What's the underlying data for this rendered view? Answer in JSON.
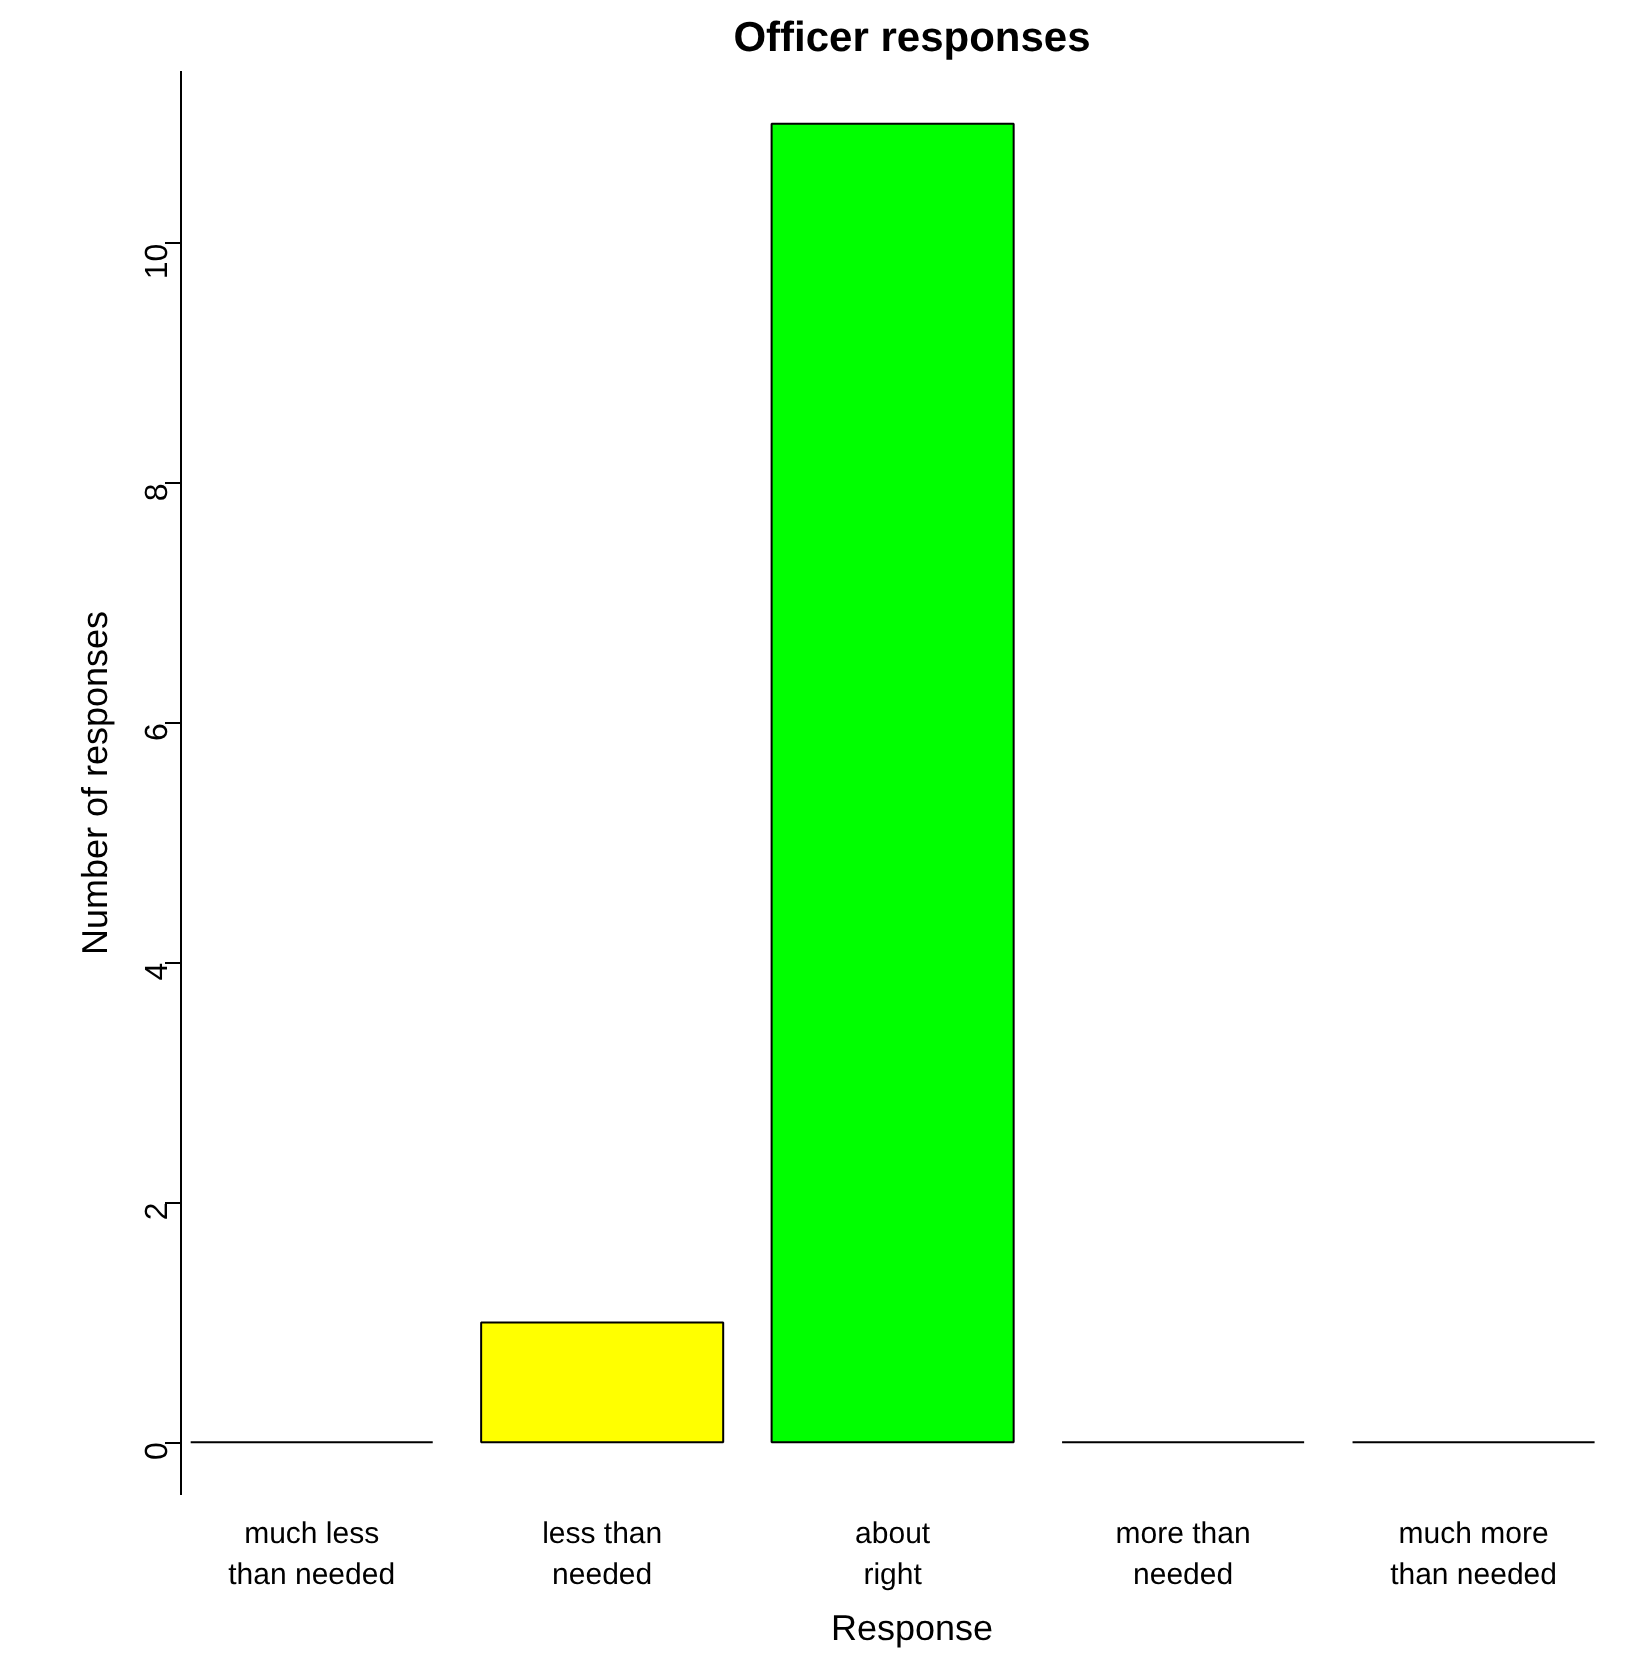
{
  "chart_data": {
    "type": "bar",
    "title": "Officer responses",
    "xlabel": "Response",
    "ylabel": "Number of responses",
    "categories": [
      "much less\nthan needed",
      "less than\nneeded",
      "about\nright",
      "more than\nneeded",
      "much more\nthan needed"
    ],
    "values": [
      0,
      1,
      11,
      0,
      0
    ],
    "colors": [
      null,
      "#ffff00",
      "#00ff00",
      null,
      null
    ],
    "ylim": [
      -0.44,
      11.44
    ],
    "yticks": [
      0,
      2,
      4,
      6,
      8,
      10
    ],
    "grid": false
  }
}
